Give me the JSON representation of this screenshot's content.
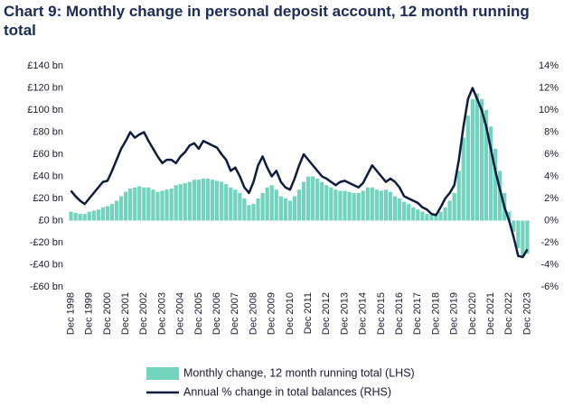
{
  "chart_data": {
    "type": "bar",
    "title": "Chart 9: Monthly change in personal deposit account, 12 month running total",
    "categories": [
      "Dec 1998",
      null,
      null,
      null,
      "Dec 1999",
      null,
      null,
      null,
      "Dec 2000",
      null,
      null,
      null,
      "Dec 2001",
      null,
      null,
      null,
      "Dec 2002",
      null,
      null,
      null,
      "Dec 2003",
      null,
      null,
      null,
      "Dec 2004",
      null,
      null,
      null,
      "Dec 2005",
      null,
      null,
      null,
      "Dec 2006",
      null,
      null,
      null,
      "Dec 2007",
      null,
      null,
      null,
      "Dec 2008",
      null,
      null,
      null,
      "Dec 2009",
      null,
      null,
      null,
      "Dec 2010",
      null,
      null,
      null,
      "Dec 2011",
      null,
      null,
      null,
      "Dec 2012",
      null,
      null,
      null,
      "Dec 2013",
      null,
      null,
      null,
      "Dec 2014",
      null,
      null,
      null,
      "Dec 2015",
      null,
      null,
      null,
      "Dec 2016",
      null,
      null,
      null,
      "Dec 2017",
      null,
      null,
      null,
      "Dec 2018",
      null,
      null,
      null,
      "Dec 2019",
      null,
      null,
      null,
      "Dec 2020",
      null,
      null,
      null,
      "Dec 2021",
      null,
      null,
      null,
      "Dec 2022",
      null,
      null,
      null,
      "Dec 2023"
    ],
    "series": [
      {
        "name": "Monthly change, 12 month running total (LHS)",
        "type": "bar",
        "axis": "y",
        "color": "#72d4bf",
        "values": [
          8,
          7,
          6,
          6,
          8,
          9,
          10,
          12,
          13,
          15,
          18,
          22,
          26,
          29,
          30,
          31,
          30,
          30,
          28,
          26,
          27,
          28,
          29,
          32,
          33,
          34,
          35,
          37,
          37,
          38,
          38,
          37,
          36,
          35,
          33,
          30,
          28,
          25,
          20,
          14,
          15,
          20,
          25,
          30,
          32,
          28,
          22,
          20,
          18,
          22,
          28,
          35,
          40,
          40,
          38,
          35,
          32,
          30,
          28,
          27,
          27,
          26,
          25,
          25,
          27,
          30,
          30,
          28,
          27,
          28,
          26,
          22,
          20,
          17,
          15,
          12,
          10,
          8,
          6,
          5,
          5,
          8,
          12,
          18,
          25,
          45,
          75,
          95,
          110,
          115,
          110,
          100,
          85,
          65,
          45,
          25,
          8,
          -10,
          -25,
          -32,
          -30
        ]
      },
      {
        "name": "Annual % change in total balances (RHS)",
        "type": "line",
        "axis": "y2",
        "color": "#0f1b3d",
        "values": [
          2.7,
          2.2,
          1.8,
          1.5,
          2.0,
          2.5,
          3.0,
          3.5,
          3.6,
          4.5,
          5.5,
          6.5,
          7.2,
          8.0,
          7.5,
          7.8,
          8.0,
          7.2,
          6.5,
          5.8,
          5.2,
          5.5,
          5.5,
          5.2,
          5.8,
          6.2,
          6.8,
          7.0,
          6.5,
          7.2,
          7.0,
          6.8,
          6.6,
          6.0,
          5.5,
          4.5,
          4.8,
          4.0,
          3.0,
          2.5,
          3.5,
          5.0,
          5.8,
          4.8,
          4.0,
          4.5,
          3.5,
          3.0,
          2.8,
          3.8,
          5.0,
          6.0,
          5.5,
          5.0,
          4.5,
          4.0,
          3.8,
          3.5,
          3.2,
          3.5,
          3.6,
          3.4,
          3.2,
          3.0,
          3.4,
          4.2,
          5.0,
          4.5,
          4.0,
          3.5,
          3.8,
          3.5,
          3.0,
          2.2,
          2.0,
          1.8,
          1.6,
          1.2,
          1.0,
          0.6,
          0.5,
          1.2,
          2.0,
          2.5,
          3.2,
          5.5,
          8.5,
          11.0,
          12.0,
          11.0,
          10.0,
          8.5,
          6.5,
          4.5,
          2.8,
          1.2,
          0.0,
          -1.5,
          -3.2,
          -3.3,
          -2.6
        ]
      }
    ],
    "ylim": [
      -60,
      140
    ],
    "yticks": [
      {
        "value": -60,
        "label": "-£60 bn"
      },
      {
        "value": -40,
        "label": "-£40 bn"
      },
      {
        "value": -20,
        "label": "-£20 bn"
      },
      {
        "value": 0,
        "label": "£0 bn"
      },
      {
        "value": 20,
        "label": "£20 bn"
      },
      {
        "value": 40,
        "label": "£40 bn"
      },
      {
        "value": 60,
        "label": "£60 bn"
      },
      {
        "value": 80,
        "label": "£80 bn"
      },
      {
        "value": 100,
        "label": "£100 bn"
      },
      {
        "value": 120,
        "label": "£120 bn"
      },
      {
        "value": 140,
        "label": "£140 bn"
      }
    ],
    "y2lim": [
      -6,
      14
    ],
    "y2ticks": [
      {
        "value": -6,
        "label": "-6%"
      },
      {
        "value": -4,
        "label": "-4%"
      },
      {
        "value": -2,
        "label": "-2%"
      },
      {
        "value": 0,
        "label": "0%"
      },
      {
        "value": 2,
        "label": "2%"
      },
      {
        "value": 4,
        "label": "4%"
      },
      {
        "value": 6,
        "label": "6%"
      },
      {
        "value": 8,
        "label": "8%"
      },
      {
        "value": 10,
        "label": "10%"
      },
      {
        "value": 12,
        "label": "12%"
      },
      {
        "value": 14,
        "label": "14%"
      }
    ],
    "grid": false
  }
}
